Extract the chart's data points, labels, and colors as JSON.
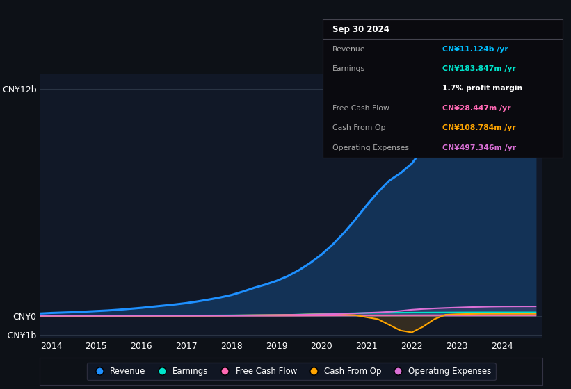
{
  "bg_color": "#0d1117",
  "plot_bg": "#111827",
  "grid_color": "#2a3444",
  "years": [
    2013.75,
    2014.0,
    2014.25,
    2014.5,
    2014.75,
    2015.0,
    2015.25,
    2015.5,
    2015.75,
    2016.0,
    2016.25,
    2016.5,
    2016.75,
    2017.0,
    2017.25,
    2017.5,
    2017.75,
    2018.0,
    2018.25,
    2018.5,
    2018.75,
    2019.0,
    2019.25,
    2019.5,
    2019.75,
    2020.0,
    2020.25,
    2020.5,
    2020.75,
    2021.0,
    2021.25,
    2021.5,
    2021.75,
    2022.0,
    2022.25,
    2022.5,
    2022.75,
    2023.0,
    2023.25,
    2023.5,
    2023.75,
    2024.0,
    2024.25,
    2024.5,
    2024.75
  ],
  "revenue": [
    0.12,
    0.15,
    0.17,
    0.19,
    0.22,
    0.25,
    0.28,
    0.32,
    0.37,
    0.42,
    0.48,
    0.54,
    0.6,
    0.67,
    0.76,
    0.86,
    0.97,
    1.1,
    1.28,
    1.48,
    1.65,
    1.85,
    2.1,
    2.42,
    2.8,
    3.25,
    3.78,
    4.4,
    5.1,
    5.85,
    6.55,
    7.15,
    7.55,
    8.05,
    8.85,
    9.55,
    9.92,
    10.22,
    10.52,
    10.72,
    10.92,
    11.02,
    11.1,
    11.12,
    11.124
  ],
  "earnings": [
    0.005,
    0.006,
    0.007,
    0.008,
    0.009,
    0.01,
    0.011,
    0.012,
    0.013,
    0.014,
    0.015,
    0.016,
    0.017,
    0.018,
    0.019,
    0.02,
    0.022,
    0.025,
    0.028,
    0.032,
    0.035,
    0.04,
    0.05,
    0.065,
    0.08,
    0.095,
    0.11,
    0.125,
    0.138,
    0.15,
    0.158,
    0.162,
    0.165,
    0.168,
    0.172,
    0.175,
    0.178,
    0.18,
    0.182,
    0.183,
    0.184,
    0.183,
    0.183,
    0.184,
    0.184
  ],
  "free_cash_flow": [
    0.0,
    0.001,
    0.001,
    0.001,
    0.001,
    0.001,
    0.001,
    0.001,
    0.001,
    0.001,
    0.001,
    0.002,
    0.002,
    0.002,
    0.002,
    0.003,
    0.003,
    0.004,
    0.005,
    0.006,
    0.007,
    0.008,
    0.01,
    0.012,
    0.015,
    0.018,
    0.02,
    0.022,
    0.024,
    0.025,
    0.026,
    0.026,
    0.027,
    0.028,
    0.029,
    0.029,
    0.029,
    0.029,
    0.028,
    0.028,
    0.028,
    0.028,
    0.028,
    0.028,
    0.028
  ],
  "cash_from_op": [
    0.001,
    0.002,
    0.002,
    0.003,
    0.003,
    0.004,
    0.004,
    0.005,
    0.005,
    0.006,
    0.007,
    0.008,
    0.009,
    0.01,
    0.012,
    0.014,
    0.016,
    0.02,
    0.025,
    0.03,
    0.035,
    0.04,
    0.05,
    0.06,
    0.07,
    0.075,
    0.07,
    0.055,
    0.03,
    -0.08,
    -0.18,
    -0.48,
    -0.78,
    -0.88,
    -0.58,
    -0.18,
    0.055,
    0.082,
    0.095,
    0.105,
    0.108,
    0.108,
    0.108,
    0.108,
    0.109
  ],
  "op_expenses": [
    0.001,
    0.001,
    0.001,
    0.002,
    0.002,
    0.002,
    0.003,
    0.003,
    0.004,
    0.004,
    0.005,
    0.006,
    0.007,
    0.008,
    0.01,
    0.012,
    0.015,
    0.018,
    0.022,
    0.027,
    0.032,
    0.038,
    0.045,
    0.055,
    0.065,
    0.078,
    0.092,
    0.11,
    0.13,
    0.155,
    0.18,
    0.21,
    0.26,
    0.32,
    0.36,
    0.39,
    0.415,
    0.435,
    0.455,
    0.47,
    0.485,
    0.492,
    0.495,
    0.497,
    0.497
  ],
  "revenue_color": "#1e90ff",
  "earnings_color": "#00e5cc",
  "fcf_color": "#ff69b4",
  "cash_op_color": "#ffa500",
  "op_exp_color": "#da70d6",
  "ylim_min": -1.2,
  "ylim_max": 12.8,
  "xticks": [
    2014,
    2015,
    2016,
    2017,
    2018,
    2019,
    2020,
    2021,
    2022,
    2023,
    2024
  ],
  "tooltip_title": "Sep 30 2024",
  "tooltip_rows": [
    {
      "label": "Revenue",
      "value": "CN¥11.124b /yr",
      "color": "#00bfff"
    },
    {
      "label": "Earnings",
      "value": "CN¥183.847m /yr",
      "color": "#00e5cc"
    },
    {
      "label": "",
      "value": "1.7% profit margin",
      "color": "#ffffff"
    },
    {
      "label": "Free Cash Flow",
      "value": "CN¥28.447m /yr",
      "color": "#ff69b4"
    },
    {
      "label": "Cash From Op",
      "value": "CN¥108.784m /yr",
      "color": "#ffa500"
    },
    {
      "label": "Operating Expenses",
      "value": "CN¥497.346m /yr",
      "color": "#da70d6"
    }
  ],
  "legend_items": [
    {
      "name": "Revenue",
      "color": "#1e90ff"
    },
    {
      "name": "Earnings",
      "color": "#00e5cc"
    },
    {
      "name": "Free Cash Flow",
      "color": "#ff69b4"
    },
    {
      "name": "Cash From Op",
      "color": "#ffa500"
    },
    {
      "name": "Operating Expenses",
      "color": "#da70d6"
    }
  ]
}
